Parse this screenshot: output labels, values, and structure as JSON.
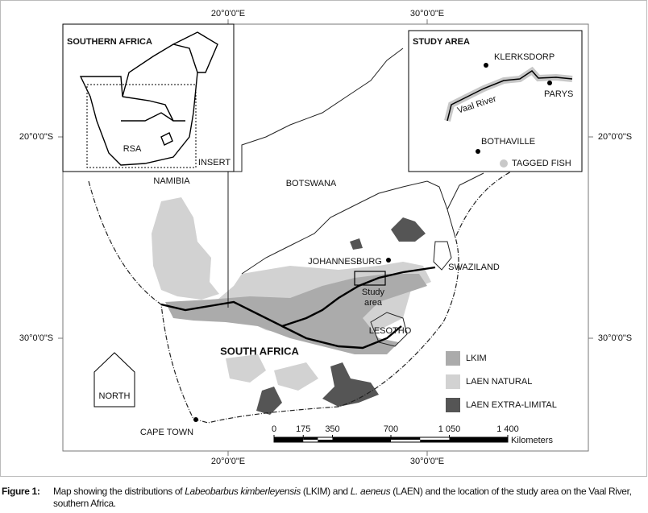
{
  "graticule": {
    "top": [
      "20°0'0\"E",
      "30°0'0\"E"
    ],
    "bottom": [
      "20°0'0\"E",
      "30°0'0\"E"
    ],
    "left": [
      "20°0'0\"S",
      "30°0'0\"S"
    ],
    "right": [
      "20°0'0\"S",
      "30°0'0\"S"
    ]
  },
  "insert": {
    "title": "SOUTHERN AFRICA",
    "country": "RSA",
    "label": "INSERT"
  },
  "study_area": {
    "title": "STUDY AREA",
    "places": [
      "KLERKSDORP",
      "PARYS",
      "BOTHAVILLE"
    ],
    "river": "Vaal River",
    "legend": "TAGGED FISH"
  },
  "labels": {
    "namibia": "NAMIBIA",
    "botswana": "BOTSWANA",
    "johannesburg": "JOHANNESBURG",
    "swaziland": "SWAZILAND",
    "study": [
      "Study",
      "area"
    ],
    "lesotho": "LESOTHO",
    "south_africa": "SOUTH AFRICA",
    "cape_town": "CAPE TOWN",
    "north": "NORTH"
  },
  "legend": [
    "LKIM",
    "LAEN NATURAL",
    "LAEN EXTRA-LIMITAL"
  ],
  "scale": {
    "ticks": [
      0,
      175,
      350,
      700,
      {
        "value": 1050,
        "label": "1 050"
      },
      {
        "value": 1400,
        "label": "1 400"
      }
    ],
    "unit": "Kilometers"
  },
  "caption": {
    "label": "Figure 1:",
    "parts": [
      "Map showing the distributions of ",
      "Labeobarbus kimberleyensis",
      " (LKIM) and ",
      "L. aeneus",
      " (LAEN) and the location of the study area on the Vaal River, southern Africa."
    ]
  }
}
